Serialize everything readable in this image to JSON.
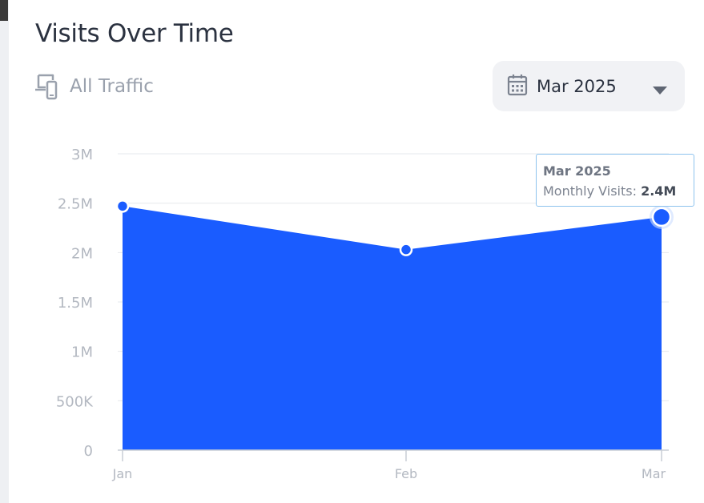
{
  "header": {
    "title": "Visits Over Time",
    "filter_label": "All Traffic",
    "filter_icon": "devices-icon",
    "date_selector": {
      "value": "Mar 2025",
      "icon": "calendar-icon",
      "caret_icon": "chevron-down-icon"
    }
  },
  "tooltip": {
    "title": "Mar 2025",
    "label": "Monthly Visits: ",
    "value": "2.4M"
  },
  "colors": {
    "accent": "#1a5cff",
    "grid": "#e6e8ec",
    "tick_text": "#b3b8c1",
    "tooltip_border": "#8ec3ee"
  },
  "chart_data": {
    "type": "area",
    "x": [
      "Jan",
      "Feb",
      "Mar"
    ],
    "series": [
      {
        "values": [
          2470000,
          2030000,
          2360000
        ]
      }
    ],
    "y_ticks": [
      0,
      500000,
      1000000,
      1500000,
      2000000,
      2500000,
      3000000
    ],
    "y_tick_labels": [
      "0",
      "500K",
      "1M",
      "1.5M",
      "2M",
      "2.5M",
      "3M"
    ],
    "ylim": [
      0,
      3000000
    ],
    "grid": true,
    "highlighted_point": "Mar"
  }
}
